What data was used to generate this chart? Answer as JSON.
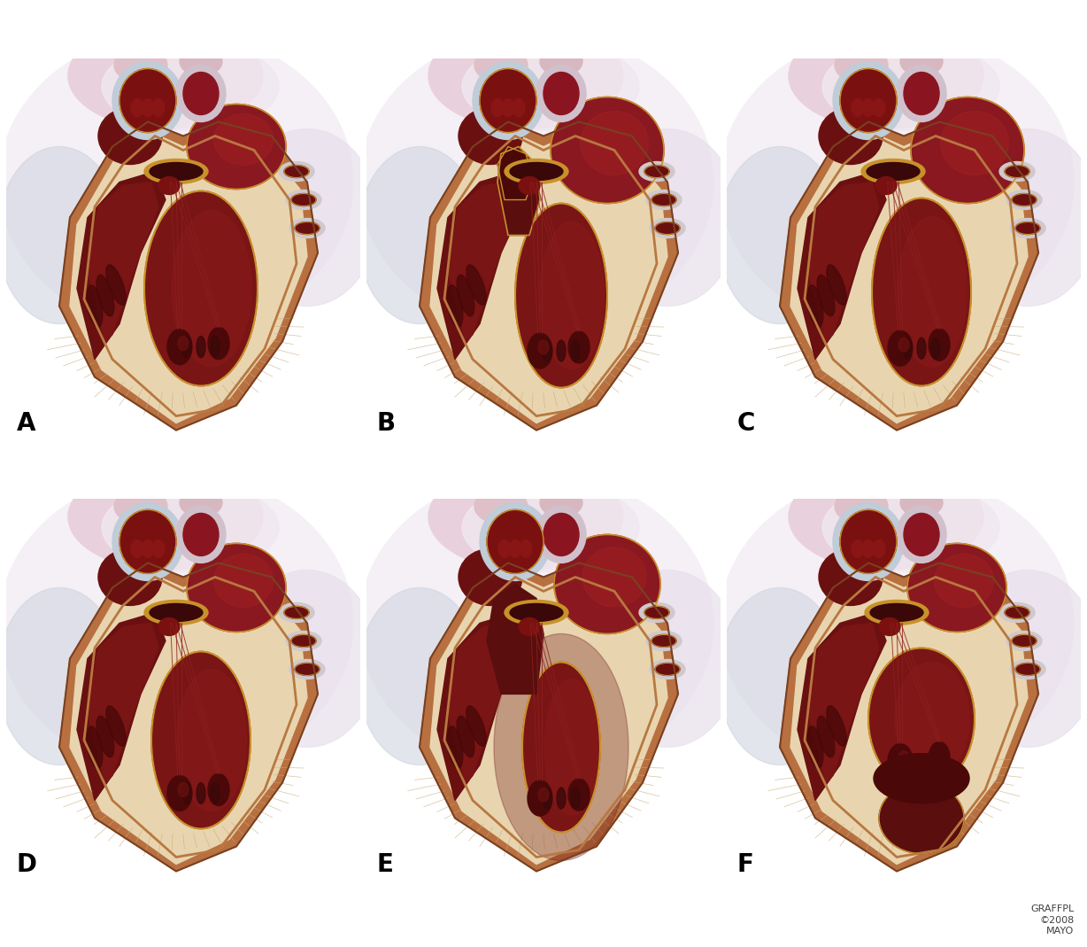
{
  "background_color": "#ffffff",
  "labels": [
    "A",
    "B",
    "C",
    "D",
    "E",
    "F"
  ],
  "label_fontsize": 20,
  "label_fontweight": "bold",
  "copyright_text": "GRAFFPL\n©2008\nMAYO",
  "copyright_fontsize": 8,
  "figsize": [
    12.28,
    10.69
  ],
  "dpi": 100,
  "colors": {
    "myocardium": "#e8d5b0",
    "myocardium_dark": "#d4b890",
    "border": "#b87840",
    "dark_red": "#6b1010",
    "medium_red": "#8b1c1c",
    "bright_red": "#9b2525",
    "lv_cavity": "#7a1515",
    "rv_cavity": "#6a1010",
    "atrium_red": "#8a1820",
    "pericardium": "#e8d0d8",
    "pericardium_light": "#f0e4ec",
    "vessel_wall": "#c8a0b0",
    "aorta_dark": "#7a1010",
    "gold": "#c8922a",
    "white_tissue": "#f5f0f0",
    "blue_gray": "#b0b8c8",
    "tan_fibrous": "#ddc89a",
    "trabeculae": "#5a0e0e"
  }
}
